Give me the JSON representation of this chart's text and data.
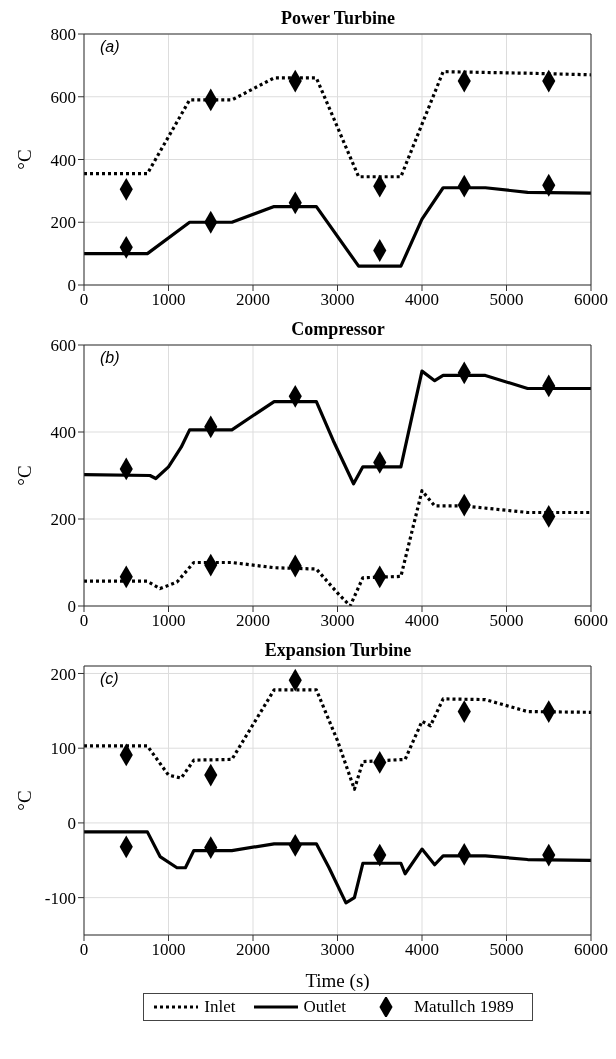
{
  "chart_data": [
    {
      "type": "line",
      "title": "Power Turbine",
      "ylabel": "°C",
      "annotations": [
        "(a)"
      ],
      "xlim": [
        0,
        6000
      ],
      "xticks": [
        0,
        1000,
        2000,
        3000,
        4000,
        5000,
        6000
      ],
      "ylim": [
        0,
        800
      ],
      "yticks": [
        0,
        200,
        400,
        600,
        800
      ],
      "grid": true,
      "series": [
        {
          "line_style": "dotted",
          "color": "#000000",
          "x": [
            0,
            750,
            1250,
            1750,
            2250,
            2750,
            3250,
            3750,
            4250,
            5250,
            6000
          ],
          "values": [
            355,
            355,
            590,
            590,
            660,
            660,
            345,
            345,
            680,
            675,
            670
          ]
        },
        {
          "line_style": "solid",
          "color": "#000000",
          "x": [
            0,
            750,
            1250,
            1750,
            2250,
            2750,
            3250,
            3750,
            4000,
            4250,
            4750,
            5250,
            6000
          ],
          "values": [
            100,
            100,
            200,
            200,
            250,
            250,
            60,
            60,
            210,
            310,
            310,
            295,
            293
          ]
        },
        {
          "type": "scatter",
          "marker": "diamond",
          "color": "#000000",
          "x": [
            500,
            1500,
            2500,
            3500,
            4500,
            5500
          ],
          "values": [
            305,
            590,
            650,
            315,
            650,
            650
          ]
        },
        {
          "type": "scatter",
          "marker": "diamond",
          "color": "#000000",
          "x": [
            500,
            1500,
            2500,
            3500,
            4500,
            5500
          ],
          "values": [
            120,
            200,
            262,
            110,
            315,
            318
          ]
        }
      ]
    },
    {
      "type": "line",
      "title": "Compressor",
      "ylabel": "°C",
      "annotations": [
        "(b)"
      ],
      "xlim": [
        0,
        6000
      ],
      "xticks": [
        0,
        1000,
        2000,
        3000,
        4000,
        5000,
        6000
      ],
      "ylim": [
        0,
        600
      ],
      "yticks": [
        0,
        200,
        400,
        600
      ],
      "grid": true,
      "series": [
        {
          "line_style": "dotted",
          "color": "#000000",
          "x": [
            0,
            750,
            900,
            1100,
            1300,
            1750,
            2250,
            2750,
            3000,
            3150,
            3300,
            3750,
            4000,
            4150,
            4500,
            5250,
            6000
          ],
          "values": [
            57,
            57,
            40,
            55,
            100,
            100,
            88,
            85,
            30,
            0,
            65,
            68,
            265,
            230,
            230,
            215,
            215
          ]
        },
        {
          "line_style": "solid",
          "color": "#000000",
          "x": [
            0,
            780,
            850,
            1000,
            1150,
            1250,
            1750,
            2250,
            2750,
            2950,
            3190,
            3300,
            3750,
            4000,
            4150,
            4250,
            4750,
            5250,
            6000
          ],
          "values": [
            302,
            300,
            293,
            320,
            365,
            405,
            405,
            470,
            470,
            380,
            281,
            320,
            320,
            540,
            518,
            530,
            530,
            500,
            500
          ]
        },
        {
          "type": "scatter",
          "marker": "diamond",
          "color": "#000000",
          "x": [
            500,
            1500,
            2500,
            3500,
            4500,
            5500
          ],
          "values": [
            315,
            412,
            482,
            330,
            536,
            506
          ]
        },
        {
          "type": "scatter",
          "marker": "diamond",
          "color": "#000000",
          "x": [
            500,
            1500,
            2500,
            3500,
            4500,
            5500
          ],
          "values": [
            67,
            94,
            92,
            67,
            232,
            206
          ]
        }
      ]
    },
    {
      "type": "line",
      "title": "Expansion Turbine",
      "xlabel": "Time (s)",
      "ylabel": "°C",
      "annotations": [
        "(c)"
      ],
      "xlim": [
        0,
        6000
      ],
      "xticks": [
        0,
        1000,
        2000,
        3000,
        4000,
        5000,
        6000
      ],
      "ylim": [
        -150,
        210
      ],
      "yticks": [
        -100,
        0,
        100,
        200
      ],
      "grid": true,
      "legend": "bottom",
      "series": [
        {
          "name": "Inlet",
          "line_style": "dotted",
          "color": "#000000",
          "x": [
            0,
            750,
            1000,
            1150,
            1300,
            1750,
            2250,
            2750,
            3000,
            3200,
            3300,
            3800,
            4000,
            4100,
            4250,
            4750,
            5250,
            6000
          ],
          "values": [
            103,
            103,
            64,
            60,
            84,
            85,
            178,
            178,
            110,
            45,
            82,
            85,
            136,
            130,
            166,
            165,
            149,
            148
          ]
        },
        {
          "name": "Outlet",
          "line_style": "solid",
          "color": "#000000",
          "x": [
            0,
            750,
            900,
            1100,
            1200,
            1300,
            1750,
            2250,
            2750,
            2900,
            3100,
            3200,
            3300,
            3750,
            3800,
            4000,
            4150,
            4250,
            4750,
            5250,
            6000
          ],
          "values": [
            -12,
            -12,
            -45,
            -60,
            -60,
            -37,
            -37,
            -28,
            -28,
            -60,
            -107,
            -100,
            -54,
            -54,
            -68,
            -35,
            -56,
            -44,
            -44,
            -49,
            -50
          ]
        },
        {
          "name": "Matullch 1989",
          "type": "scatter",
          "marker": "diamond",
          "color": "#000000",
          "x": [
            500,
            1500,
            2500,
            3500,
            4500,
            5500
          ],
          "values": [
            91,
            64,
            191,
            81,
            149,
            149
          ]
        },
        {
          "type": "scatter",
          "marker": "diamond",
          "color": "#000000",
          "x": [
            500,
            1500,
            2500,
            3500,
            4500,
            5500
          ],
          "values": [
            -32,
            -33,
            -30,
            -43,
            -42,
            -43
          ]
        }
      ]
    }
  ]
}
